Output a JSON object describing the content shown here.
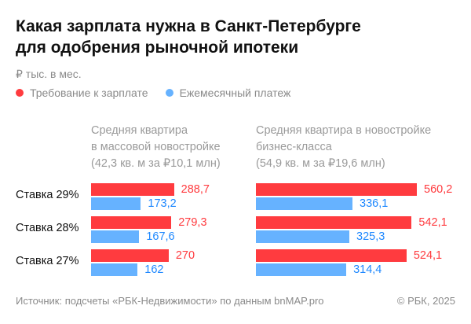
{
  "title_line1": "Какая зарплата нужна в Санкт-Петербурге",
  "title_line2": "для одобрения рыночной ипотеки",
  "units": "₽ тыс. в мес.",
  "colors": {
    "requirement": "#ff3b3f",
    "payment": "#66b2ff",
    "requirement_text": "#ff3b3f",
    "payment_text": "#1e88ff"
  },
  "footer": {
    "source": "Источник: подсчеты «РБК-Недвижимости» по данным bnMAP.pro",
    "copyright": "© РБК, 2025"
  },
  "chart_data": {
    "type": "bar",
    "orientation": "horizontal",
    "legend": [
      "Требование к зарплате",
      "Ежемесячный платеж"
    ],
    "legend_placement": "top-left",
    "categories": [
      "Ставка 29%",
      "Ставка 28%",
      "Ставка 27%"
    ],
    "panels": [
      {
        "title": [
          "Средняя квартира",
          "в массовой новостройке",
          "(42,3 кв. м за ₽10,1 млн)"
        ],
        "series": [
          {
            "name": "Требование к зарплате",
            "values": [
              288.7,
              279.3,
              270
            ],
            "labels": [
              "288,7",
              "279,3",
              "270"
            ]
          },
          {
            "name": "Ежемесячный платеж",
            "values": [
              173.2,
              167.6,
              162
            ],
            "labels": [
              "173,2",
              "167,6",
              "162"
            ]
          }
        ]
      },
      {
        "title": [
          "Средняя квартира в новостройке",
          "бизнес-класса",
          "(54,9 кв. м за ₽19,6 млн)"
        ],
        "series": [
          {
            "name": "Требование к зарплате",
            "values": [
              560.2,
              542.1,
              524.1
            ],
            "labels": [
              "560,2",
              "542,1",
              "524,1"
            ]
          },
          {
            "name": "Ежемесячный платеж",
            "values": [
              336.1,
              325.3,
              314.4
            ],
            "labels": [
              "336,1",
              "325,3",
              "314,4"
            ]
          }
        ]
      }
    ]
  }
}
